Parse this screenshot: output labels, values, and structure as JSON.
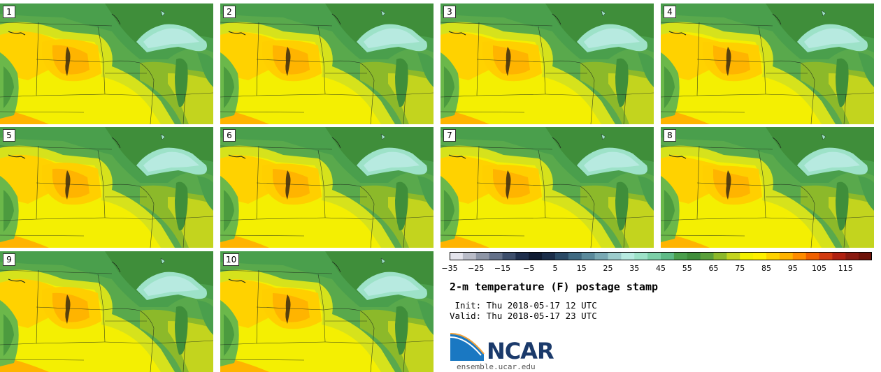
{
  "figure": {
    "title": "2-m temperature (F) postage stamp",
    "init": " Init: Thu 2018-05-17 12 UTC",
    "valid": "Valid: Thu 2018-05-17 23 UTC",
    "source": "ensemble.ucar.edu",
    "logo_text": "NCAR"
  },
  "stamps": [
    {
      "label": "1"
    },
    {
      "label": "2"
    },
    {
      "label": "3"
    },
    {
      "label": "4"
    },
    {
      "label": "5"
    },
    {
      "label": "6"
    },
    {
      "label": "7"
    },
    {
      "label": "8"
    },
    {
      "label": "9"
    },
    {
      "label": "10"
    }
  ],
  "colorbar": {
    "units": "F",
    "bins": [
      -35,
      -30,
      -25,
      -20,
      -15,
      -10,
      -5,
      0,
      5,
      10,
      15,
      20,
      25,
      30,
      35,
      40,
      45,
      50,
      55,
      60,
      65,
      70,
      75,
      80,
      85,
      90,
      95,
      100,
      105,
      110,
      115,
      120
    ],
    "tick_labels": [
      "−35",
      "−25",
      "−15",
      "−5",
      "5",
      "15",
      "25",
      "35",
      "45",
      "55",
      "65",
      "75",
      "85",
      "95",
      "105",
      "115"
    ],
    "colors": [
      "#e4e4ec",
      "#b9bcc8",
      "#8d95a6",
      "#64718a",
      "#3d4e6c",
      "#1f2f4d",
      "#101c33",
      "#1b2e4a",
      "#2a4a66",
      "#3f6a82",
      "#5a8a9c",
      "#79a9b4",
      "#9ccccc",
      "#b7eae0",
      "#9de2c8",
      "#7cd0a8",
      "#5eba86",
      "#4a9f4c",
      "#3f8e3a",
      "#5aa03a",
      "#8cb92a",
      "#c3d41e",
      "#f2f000",
      "#fff000",
      "#ffd200",
      "#ffb300",
      "#ff8c00",
      "#f06000",
      "#d23a10",
      "#b02010",
      "#8a1a10",
      "#6e1208"
    ]
  }
}
